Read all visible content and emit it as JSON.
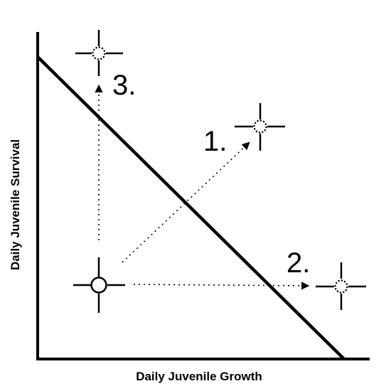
{
  "diagram": {
    "x_axis_label": "Daily Juvenile Growth",
    "y_axis_label": "Daily Juvenile Survival",
    "tradeoff_line": "present",
    "start_point_marker": "solid-circle-crosshair-icon",
    "target_marker": "dotted-circle-crosshair-icon",
    "options": [
      {
        "label": "1.",
        "direction": "increase growth and survival"
      },
      {
        "label": "2.",
        "direction": "increase growth"
      },
      {
        "label": "3.",
        "direction": "increase survival"
      }
    ],
    "colors": {
      "ink": "#000000",
      "background": "#ffffff"
    }
  }
}
